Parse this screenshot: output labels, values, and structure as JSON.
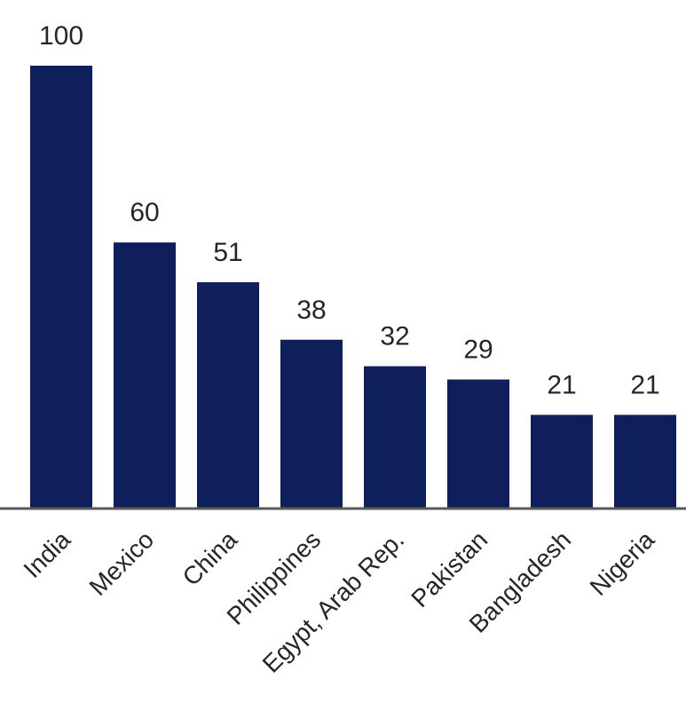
{
  "chart_data": {
    "type": "bar",
    "categories": [
      "India",
      "Mexico",
      "China",
      "Philippines",
      "Egypt, Arab Rep.",
      "Pakistan",
      "Bangladesh",
      "Nigeria"
    ],
    "values": [
      100,
      60,
      51,
      38,
      32,
      29,
      21,
      21
    ],
    "data_labels": [
      "100",
      "60",
      "51",
      "38",
      "32",
      "29",
      "21",
      "21"
    ],
    "title": "",
    "xlabel": "",
    "ylabel": "",
    "ylim": [
      0,
      100
    ],
    "grid": false,
    "legend": "none",
    "x_tick_rotation": -45
  },
  "colors": {
    "bar": "#0e1f5b",
    "axis": "#5a5a5a",
    "text": "#262626"
  }
}
